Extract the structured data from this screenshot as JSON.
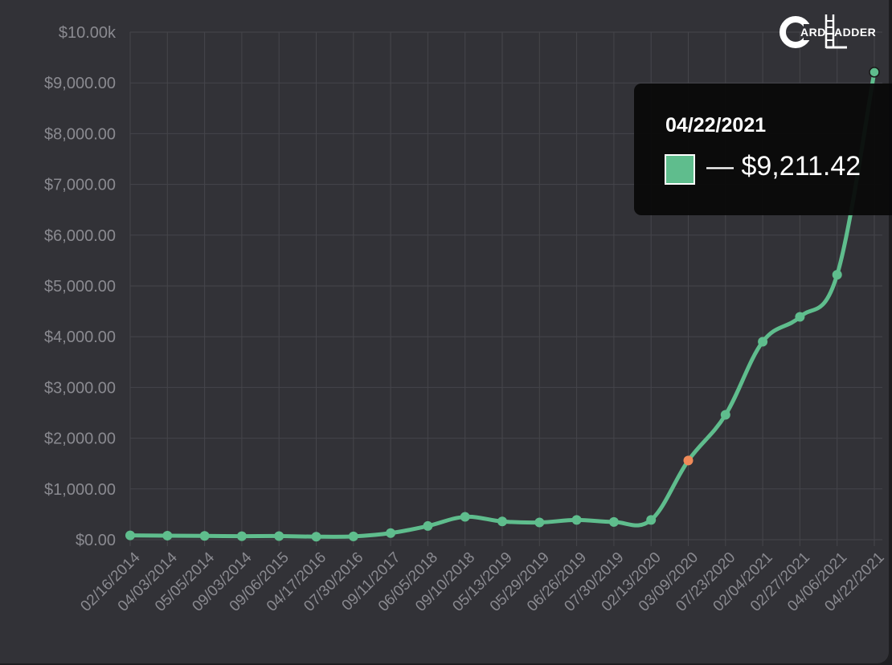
{
  "logo": {
    "text_left": "ARD",
    "text_right": "ADDER"
  },
  "tooltip": {
    "date": "04/22/2021",
    "value": "— $9,211.42",
    "swatch_color": "#5fbd8d"
  },
  "colors": {
    "line": "#5fbd8d",
    "highlight_point": "#ef8a58",
    "background": "#323237",
    "grid": "#45454b"
  },
  "chart_data": {
    "type": "line",
    "categories": [
      "02/16/2014",
      "04/03/2014",
      "05/05/2014",
      "09/03/2014",
      "09/06/2015",
      "04/17/2016",
      "07/30/2016",
      "09/11/2017",
      "06/05/2018",
      "09/10/2018",
      "05/13/2019",
      "05/29/2019",
      "06/26/2019",
      "07/30/2019",
      "02/13/2020",
      "03/09/2020",
      "07/23/2020",
      "02/04/2021",
      "02/27/2021",
      "04/06/2021",
      "04/22/2021"
    ],
    "series": [
      {
        "values": [
          85,
          80,
          75,
          70,
          72,
          60,
          65,
          130,
          270,
          450,
          360,
          340,
          390,
          350,
          390,
          1560,
          2460,
          3900,
          4390,
          5220,
          9211.42
        ]
      }
    ],
    "highlight_index": 15,
    "y_ticks": [
      "$0.00",
      "$1,000.00",
      "$2,000.00",
      "$3,000.00",
      "$4,000.00",
      "$5,000.00",
      "$6,000.00",
      "$7,000.00",
      "$8,000.00",
      "$9,000.00",
      "$10.00k"
    ],
    "ylim": [
      0,
      10000
    ],
    "grid": true
  }
}
